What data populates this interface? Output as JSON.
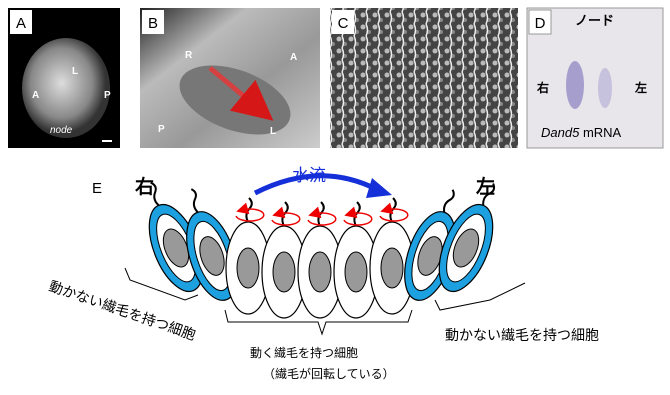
{
  "panels": {
    "a": {
      "label": "A",
      "marks": [
        "L",
        "A",
        "P"
      ],
      "caption": "node"
    },
    "b": {
      "label": "B",
      "marks": [
        "R",
        "A",
        "P",
        "L"
      ]
    },
    "c": {
      "label": "C"
    },
    "d": {
      "label": "D",
      "title": "ノード",
      "right": "右",
      "left": "左",
      "gene": "Dand5",
      "suffix": "mRNA"
    }
  },
  "diagram": {
    "label": "E",
    "right": "右",
    "left": "左",
    "flow": "水流",
    "left_caption": "動かない繊毛を持つ細胞",
    "right_caption": "動かない繊毛を持つ細胞",
    "center_caption": "動く繊毛を持つ細胞",
    "center_note": "（繊毛が回転している）"
  }
}
